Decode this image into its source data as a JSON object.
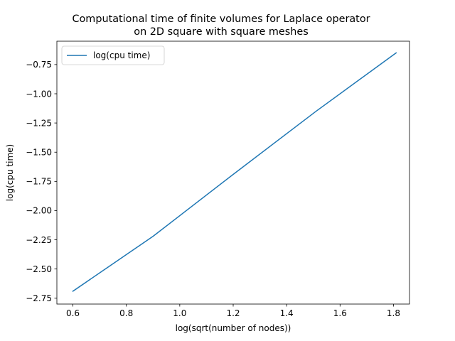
{
  "chart_data": {
    "type": "line",
    "title": {
      "line1": "Computational time of finite volumes for Laplace operator",
      "line2": "on 2D square with square meshes"
    },
    "xlabel": "log(sqrt(number of nodes))",
    "ylabel": "log(cpu time)",
    "xlim": [
      0.54,
      1.86
    ],
    "ylim": [
      -2.8,
      -0.55
    ],
    "xticks": [
      0.6,
      0.8,
      1.0,
      1.2,
      1.4,
      1.6,
      1.8
    ],
    "xtick_labels": [
      "0.6",
      "0.8",
      "1.0",
      "1.2",
      "1.4",
      "1.6",
      "1.8"
    ],
    "yticks": [
      -2.75,
      -2.5,
      -2.25,
      -2.0,
      -1.75,
      -1.5,
      -1.25,
      -1.0,
      -0.75
    ],
    "ytick_labels": [
      "−2.75",
      "−2.50",
      "−2.25",
      "−2.00",
      "−1.75",
      "−1.50",
      "−1.25",
      "−1.00",
      "−0.75"
    ],
    "grid": false,
    "legend_position": "upper-left",
    "series": [
      {
        "name": "log(cpu time)",
        "color": "#1f77b4",
        "x": [
          0.6,
          0.9,
          1.2,
          1.51,
          1.81
        ],
        "y": [
          -2.69,
          -2.22,
          -1.69,
          -1.15,
          -0.65
        ]
      }
    ]
  }
}
